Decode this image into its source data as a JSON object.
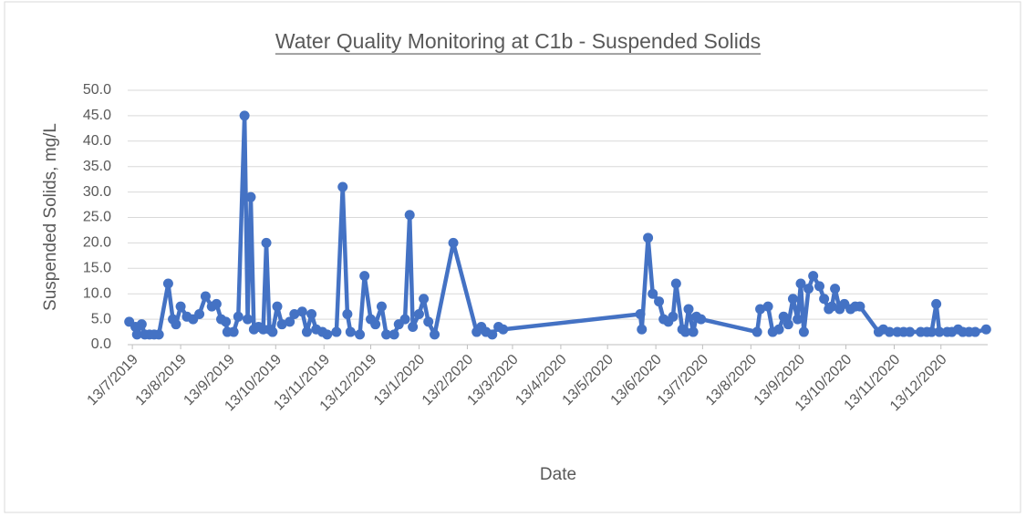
{
  "chart_data": {
    "type": "line",
    "title": "Water Quality Monitoring at C1b - Suspended Solids",
    "x_label": "Date",
    "y_label": "Suspended Solids, mg/L",
    "grid": true,
    "xlim": [
      "2019-07-10",
      "2021-01-12"
    ],
    "ylim": [
      0,
      50
    ],
    "yticks": [
      {
        "value": 0,
        "label": "0.0"
      },
      {
        "value": 5,
        "label": "5.0"
      },
      {
        "value": 10,
        "label": "10.0"
      },
      {
        "value": 15,
        "label": "15.0"
      },
      {
        "value": 20,
        "label": "20.0"
      },
      {
        "value": 25,
        "label": "25.0"
      },
      {
        "value": 30,
        "label": "30.0"
      },
      {
        "value": 35,
        "label": "35.0"
      },
      {
        "value": 40,
        "label": "40.0"
      },
      {
        "value": 45,
        "label": "45.0"
      },
      {
        "value": 50,
        "label": "50.0"
      }
    ],
    "xticks": [
      {
        "value": "2019-07-13",
        "label": "13/7/2019"
      },
      {
        "value": "2019-08-13",
        "label": "13/8/2019"
      },
      {
        "value": "2019-09-13",
        "label": "13/9/2019"
      },
      {
        "value": "2019-10-13",
        "label": "13/10/2019"
      },
      {
        "value": "2019-11-13",
        "label": "13/11/2019"
      },
      {
        "value": "2019-12-13",
        "label": "13/12/2019"
      },
      {
        "value": "2020-01-13",
        "label": "13/1/2020"
      },
      {
        "value": "2020-02-13",
        "label": "13/2/2020"
      },
      {
        "value": "2020-03-13",
        "label": "13/3/2020"
      },
      {
        "value": "2020-04-13",
        "label": "13/4/2020"
      },
      {
        "value": "2020-05-13",
        "label": "13/5/2020"
      },
      {
        "value": "2020-06-13",
        "label": "13/6/2020"
      },
      {
        "value": "2020-07-13",
        "label": "13/7/2020"
      },
      {
        "value": "2020-08-13",
        "label": "13/8/2020"
      },
      {
        "value": "2020-09-13",
        "label": "13/9/2020"
      },
      {
        "value": "2020-10-13",
        "label": "13/10/2020"
      },
      {
        "value": "2020-11-13",
        "label": "13/11/2020"
      },
      {
        "value": "2020-12-13",
        "label": "13/12/2020"
      }
    ],
    "x": [
      "2019-07-11",
      "2019-07-15",
      "2019-07-16",
      "2019-07-19",
      "2019-07-21",
      "2019-07-24",
      "2019-07-27",
      "2019-07-30",
      "2019-08-05",
      "2019-08-08",
      "2019-08-10",
      "2019-08-13",
      "2019-08-17",
      "2019-08-21",
      "2019-08-25",
      "2019-08-29",
      "2019-09-02",
      "2019-09-05",
      "2019-09-08",
      "2019-09-11",
      "2019-09-12",
      "2019-09-16",
      "2019-09-19",
      "2019-09-23",
      "2019-09-25",
      "2019-09-27",
      "2019-09-29",
      "2019-10-02",
      "2019-10-05",
      "2019-10-07",
      "2019-10-09",
      "2019-10-11",
      "2019-10-14",
      "2019-10-17",
      "2019-10-22",
      "2019-10-25",
      "2019-10-30",
      "2019-11-02",
      "2019-11-05",
      "2019-11-08",
      "2019-11-12",
      "2019-11-15",
      "2019-11-21",
      "2019-11-25",
      "2019-11-28",
      "2019-11-30",
      "2019-12-06",
      "2019-12-09",
      "2019-12-13",
      "2019-12-16",
      "2019-12-20",
      "2019-12-23",
      "2019-12-28",
      "2019-12-31",
      "2020-01-04",
      "2020-01-07",
      "2020-01-09",
      "2020-01-13",
      "2020-01-16",
      "2020-01-19",
      "2020-01-23",
      "2020-02-04",
      "2020-02-19",
      "2020-02-22",
      "2020-02-25",
      "2020-02-29",
      "2020-03-04",
      "2020-03-07",
      "2020-06-03",
      "2020-06-04",
      "2020-06-08",
      "2020-06-11",
      "2020-06-15",
      "2020-06-18",
      "2020-06-21",
      "2020-06-24",
      "2020-06-26",
      "2020-06-30",
      "2020-07-02",
      "2020-07-04",
      "2020-07-07",
      "2020-07-09",
      "2020-07-12",
      "2020-08-17",
      "2020-08-19",
      "2020-08-24",
      "2020-08-27",
      "2020-08-31",
      "2020-09-03",
      "2020-09-06",
      "2020-09-09",
      "2020-09-12",
      "2020-09-14",
      "2020-09-16",
      "2020-09-19",
      "2020-09-22",
      "2020-09-26",
      "2020-09-29",
      "2020-10-02",
      "2020-10-04",
      "2020-10-06",
      "2020-10-09",
      "2020-10-12",
      "2020-10-16",
      "2020-10-19",
      "2020-10-22",
      "2020-11-03",
      "2020-11-06",
      "2020-11-10",
      "2020-11-15",
      "2020-11-19",
      "2020-11-23",
      "2020-11-30",
      "2020-12-04",
      "2020-12-07",
      "2020-12-10",
      "2020-12-12",
      "2020-12-17",
      "2020-12-20",
      "2020-12-24",
      "2020-12-27",
      "2020-12-31",
      "2021-01-04",
      "2021-01-11"
    ],
    "series": [
      {
        "name": "Suspended Solids",
        "color": "#4472c4",
        "values": [
          4.5,
          3.5,
          2,
          4,
          2,
          2,
          2,
          2,
          12,
          5,
          4,
          7.5,
          5.5,
          5,
          6,
          9.5,
          7.5,
          8,
          5,
          4.5,
          2.5,
          2.5,
          5.5,
          45,
          5,
          29,
          3,
          3.5,
          3,
          20,
          3,
          2.5,
          7.5,
          4,
          4.5,
          6,
          6.5,
          2.5,
          6,
          3,
          2.5,
          2,
          2.5,
          31,
          6,
          2.5,
          2,
          13.5,
          5,
          4,
          7.5,
          2,
          2,
          4,
          5,
          25.5,
          3.5,
          6,
          9,
          4.5,
          2,
          20,
          2.5,
          3.5,
          2.5,
          2,
          3.5,
          3,
          6,
          3,
          21,
          10,
          8.5,
          5,
          4.5,
          5.5,
          12,
          3,
          2.5,
          7,
          2.5,
          5.5,
          5,
          2.5,
          7,
          7.5,
          2.5,
          3,
          5.5,
          4,
          9,
          5,
          12,
          2.5,
          11,
          13.5,
          11.5,
          9,
          7,
          7.5,
          11,
          7,
          8,
          7,
          7.5,
          7.5,
          2.5,
          3,
          2.5,
          2.5,
          2.5,
          2.5,
          2.5,
          2.5,
          2.5,
          8,
          2.5,
          2.5,
          2.5,
          3,
          2.5,
          2.5,
          2.5,
          3
        ]
      }
    ]
  }
}
